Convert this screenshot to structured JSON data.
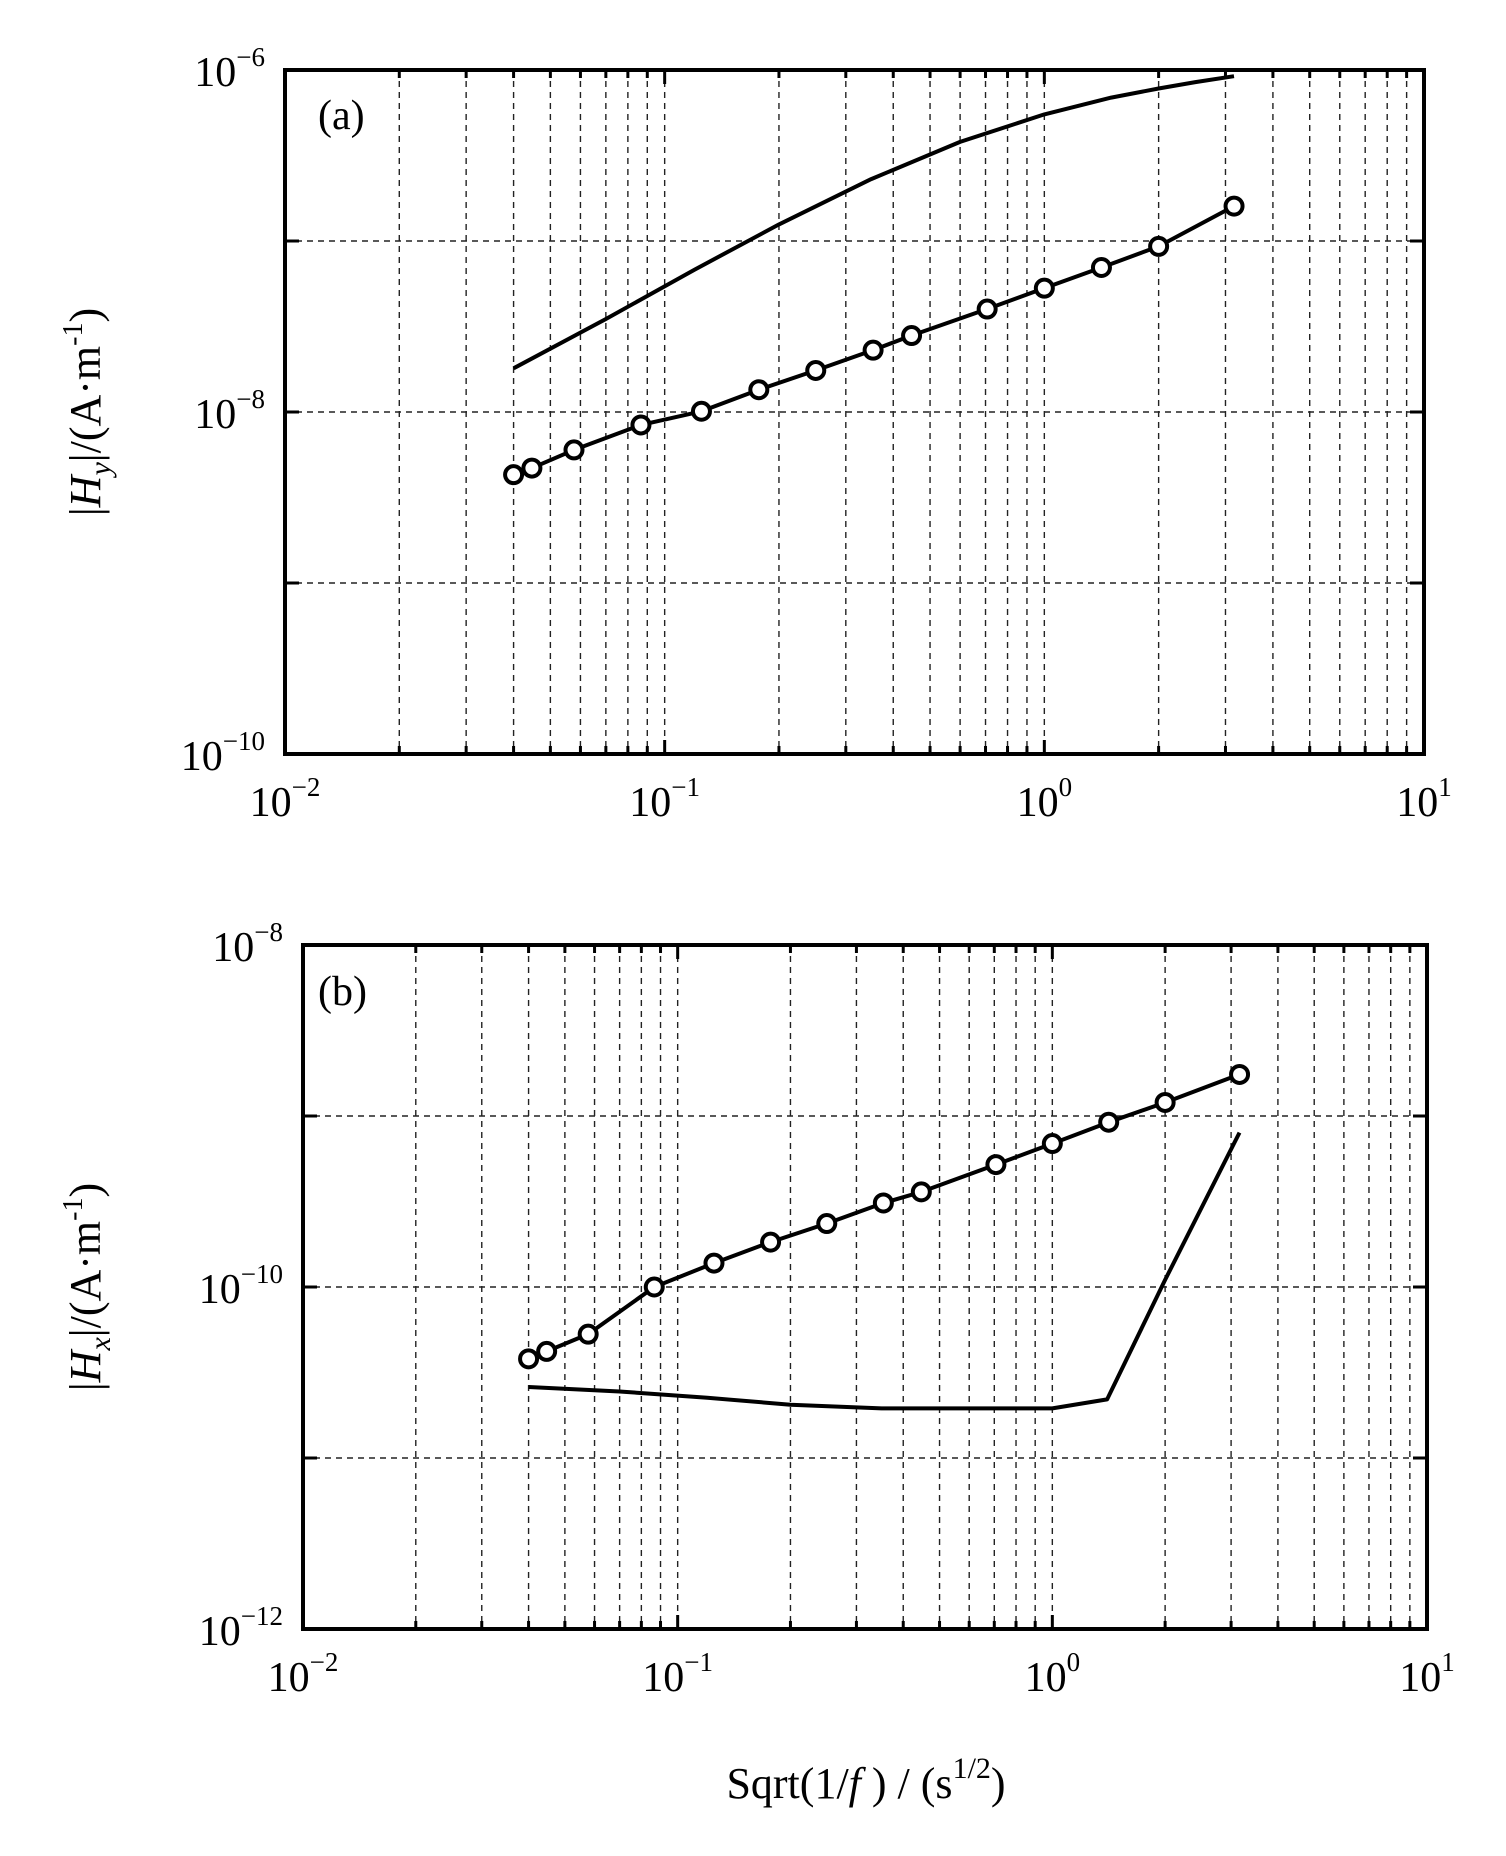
{
  "chart_data": [
    {
      "type": "line",
      "panel_label": "(a)",
      "xscale": "log",
      "yscale": "log",
      "xlim": [
        0.01,
        10
      ],
      "ylim": [
        1e-10,
        1e-06
      ],
      "grid": true,
      "x_ticks": [
        {
          "base": "10",
          "exp": "−2",
          "value": 0.01
        },
        {
          "base": "10",
          "exp": "−1",
          "value": 0.1
        },
        {
          "base": "10",
          "exp": "0",
          "value": 1
        },
        {
          "base": "10",
          "exp": "1",
          "value": 10
        }
      ],
      "y_ticks": [
        {
          "base": "10",
          "exp": "−10",
          "value": 1e-10
        },
        {
          "base": "10",
          "exp": "−8",
          "value": 1e-08
        },
        {
          "base": "10",
          "exp": "−6",
          "value": 1e-06
        }
      ],
      "ylabel": {
        "bar1": "|",
        "sym": "H",
        "sub": "y",
        "bar2": "|",
        "unit": "/(A·m",
        "sup": "-1",
        "close": ")"
      },
      "xlabel": "",
      "series": [
        {
          "name": "solid",
          "marker": "none",
          "x": [
            0.04,
            0.07,
            0.12,
            0.2,
            0.35,
            0.6,
            1.0,
            1.5,
            2.0,
            2.5,
            3.16
          ],
          "y": [
            1.8e-08,
            3.5e-08,
            6.8e-08,
            1.25e-07,
            2.3e-07,
            3.8e-07,
            5.5e-07,
            6.9e-07,
            7.8e-07,
            8.5e-07,
            9.2e-07
          ]
        },
        {
          "name": "circles",
          "marker": "circle",
          "x": [
            0.04,
            0.0447,
            0.0577,
            0.0866,
            0.125,
            0.177,
            0.25,
            0.354,
            0.447,
            0.707,
            1.0,
            1.414,
            2.0,
            3.16
          ],
          "y": [
            4.3e-09,
            4.7e-09,
            6e-09,
            8.4e-09,
            1.01e-08,
            1.35e-08,
            1.75e-08,
            2.3e-08,
            2.8e-08,
            4e-08,
            5.3e-08,
            7e-08,
            9.3e-08,
            1.6e-07
          ]
        }
      ]
    },
    {
      "type": "line",
      "panel_label": "(b)",
      "xscale": "log",
      "yscale": "log",
      "xlim": [
        0.01,
        10
      ],
      "ylim": [
        1e-12,
        1e-08
      ],
      "grid": true,
      "x_ticks": [
        {
          "base": "10",
          "exp": "−2",
          "value": 0.01
        },
        {
          "base": "10",
          "exp": "−1",
          "value": 0.1
        },
        {
          "base": "10",
          "exp": "0",
          "value": 1
        },
        {
          "base": "10",
          "exp": "1",
          "value": 10
        }
      ],
      "y_ticks": [
        {
          "base": "10",
          "exp": "−12",
          "value": 1e-12
        },
        {
          "base": "10",
          "exp": "−10",
          "value": 1e-10
        },
        {
          "base": "10",
          "exp": "−8",
          "value": 1e-08
        }
      ],
      "ylabel": {
        "bar1": "|",
        "sym": "H",
        "sub": "x",
        "bar2": "|",
        "unit": "/(A·m",
        "sup": "-1",
        "close": ")"
      },
      "xlabel": {
        "pre": "Sqrt(1/",
        "f": "f",
        "mid": " ) / (s",
        "sup": "1/2",
        "close": ")"
      },
      "series": [
        {
          "name": "circles",
          "marker": "circle",
          "x": [
            0.04,
            0.0447,
            0.0577,
            0.0866,
            0.125,
            0.177,
            0.25,
            0.354,
            0.447,
            0.707,
            1.0,
            1.414,
            2.0,
            3.16
          ],
          "y": [
            3.8e-11,
            4.2e-11,
            5.3e-11,
            1e-10,
            1.38e-10,
            1.83e-10,
            2.35e-10,
            3.1e-10,
            3.6e-10,
            5.2e-10,
            6.9e-10,
            9.2e-10,
            1.2e-09,
            1.75e-09
          ]
        },
        {
          "name": "solid",
          "marker": "none",
          "x": [
            0.04,
            0.07,
            0.12,
            0.2,
            0.35,
            0.6,
            1.0,
            1.4,
            2.0,
            3.16
          ],
          "y": [
            2.6e-11,
            2.45e-11,
            2.25e-11,
            2.05e-11,
            1.95e-11,
            1.95e-11,
            1.95e-11,
            2.2e-11,
            1.1e-10,
            8e-10
          ]
        }
      ]
    }
  ]
}
